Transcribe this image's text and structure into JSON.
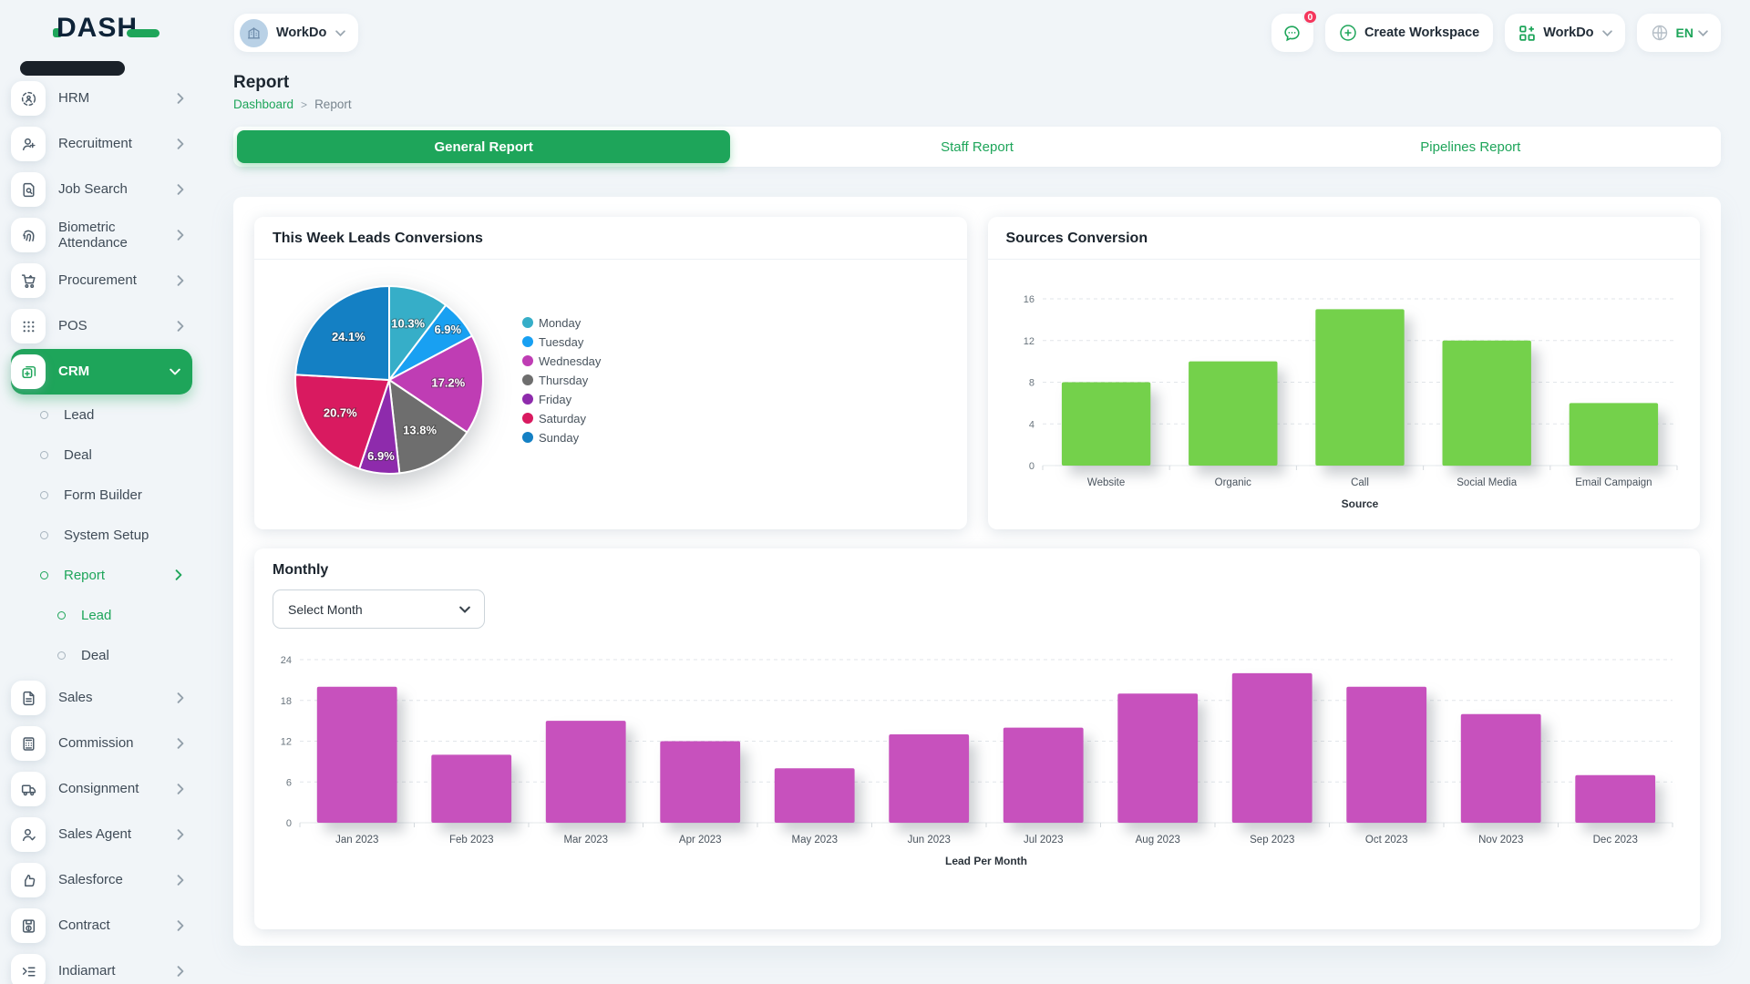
{
  "accent": "#1ea55a",
  "logo": {
    "text": "DASH"
  },
  "topbar": {
    "workspace_switcher": {
      "label": "WorkDo",
      "icon": "building-avatar-icon"
    },
    "messages": {
      "icon": "chat-icon",
      "badge": "0"
    },
    "create_workspace": {
      "label": "Create Workspace",
      "icon": "plus-circle-icon"
    },
    "workspace_menu": {
      "label": "WorkDo",
      "icon": "grid-plus-icon"
    },
    "language": {
      "label": "EN",
      "icon": "globe-icon"
    }
  },
  "page": {
    "title": "Report",
    "breadcrumb": {
      "home": "Dashboard",
      "separator": ">",
      "current": "Report"
    }
  },
  "tabs": [
    {
      "label": "General Report",
      "active": true
    },
    {
      "label": "Staff Report",
      "active": false
    },
    {
      "label": "Pipelines Report",
      "active": false
    }
  ],
  "sidebar": {
    "items": [
      {
        "label": "HRM",
        "icon": "hrm-icon"
      },
      {
        "label": "Recruitment",
        "icon": "recruitment-icon"
      },
      {
        "label": "Job Search",
        "icon": "job-search-icon"
      },
      {
        "label": "Biometric Attendance",
        "icon": "biometric-icon"
      },
      {
        "label": "Procurement",
        "icon": "procurement-icon"
      },
      {
        "label": "POS",
        "icon": "pos-icon"
      },
      {
        "label": "CRM",
        "icon": "crm-icon",
        "active": true,
        "expanded": true,
        "children": [
          {
            "label": "Lead"
          },
          {
            "label": "Deal"
          },
          {
            "label": "Form Builder"
          },
          {
            "label": "System Setup"
          },
          {
            "label": "Report",
            "active": true,
            "expanded": true,
            "children": [
              {
                "label": "Lead",
                "active": true
              },
              {
                "label": "Deal"
              }
            ]
          }
        ]
      },
      {
        "label": "Sales",
        "icon": "sales-icon"
      },
      {
        "label": "Commission",
        "icon": "commission-icon"
      },
      {
        "label": "Consignment",
        "icon": "consignment-icon"
      },
      {
        "label": "Sales Agent",
        "icon": "sales-agent-icon"
      },
      {
        "label": "Salesforce",
        "icon": "salesforce-icon"
      },
      {
        "label": "Contract",
        "icon": "contract-icon"
      },
      {
        "label": "Indiamart",
        "icon": "indiamart-icon"
      }
    ]
  },
  "cards": {
    "pie_title": "This Week Leads Conversions",
    "sources_title": "Sources Conversion",
    "monthly_title": "Monthly",
    "month_select": {
      "value": "Select Month"
    }
  },
  "chart_data": [
    {
      "id": "weekly-leads-pie",
      "type": "pie",
      "title": "This Week Leads Conversions",
      "labels": [
        "Monday",
        "Tuesday",
        "Wednesday",
        "Thursday",
        "Friday",
        "Saturday",
        "Sunday"
      ],
      "values": [
        10.3,
        6.9,
        17.2,
        13.8,
        6.9,
        20.7,
        24.1
      ],
      "unit": "%",
      "colors": [
        "#36aec8",
        "#18a0f2",
        "#bf3db4",
        "#6e6e6e",
        "#8e2bac",
        "#d91a60",
        "#1480c4"
      ],
      "legend_position": "right",
      "start_angle": "top",
      "direction": "clockwise"
    },
    {
      "id": "sources-conversion-bar",
      "type": "bar",
      "title": "Sources Conversion",
      "categories": [
        "Website",
        "Organic",
        "Call",
        "Social Media",
        "Email Campaign"
      ],
      "values": [
        8,
        10,
        15,
        12,
        6
      ],
      "color": "#74d14b",
      "xlabel": "Source",
      "ylabel": "",
      "ylim": [
        0,
        16
      ],
      "yticks": [
        0,
        4,
        8,
        12,
        16
      ],
      "grid": "dashed-horizontal"
    },
    {
      "id": "monthly-leads-bar",
      "type": "bar",
      "title": "Monthly",
      "categories": [
        "Jan 2023",
        "Feb 2023",
        "Mar 2023",
        "Apr 2023",
        "May 2023",
        "Jun 2023",
        "Jul 2023",
        "Aug 2023",
        "Sep 2023",
        "Oct 2023",
        "Nov 2023",
        "Dec 2023"
      ],
      "values": [
        20,
        10,
        15,
        12,
        8,
        13,
        14,
        19,
        22,
        20,
        16,
        7
      ],
      "color": "#c751bd",
      "xlabel": "Lead Per Month",
      "ylabel": "",
      "ylim": [
        0,
        24
      ],
      "yticks": [
        0,
        6,
        12,
        18,
        24
      ],
      "grid": "dashed-horizontal"
    }
  ]
}
